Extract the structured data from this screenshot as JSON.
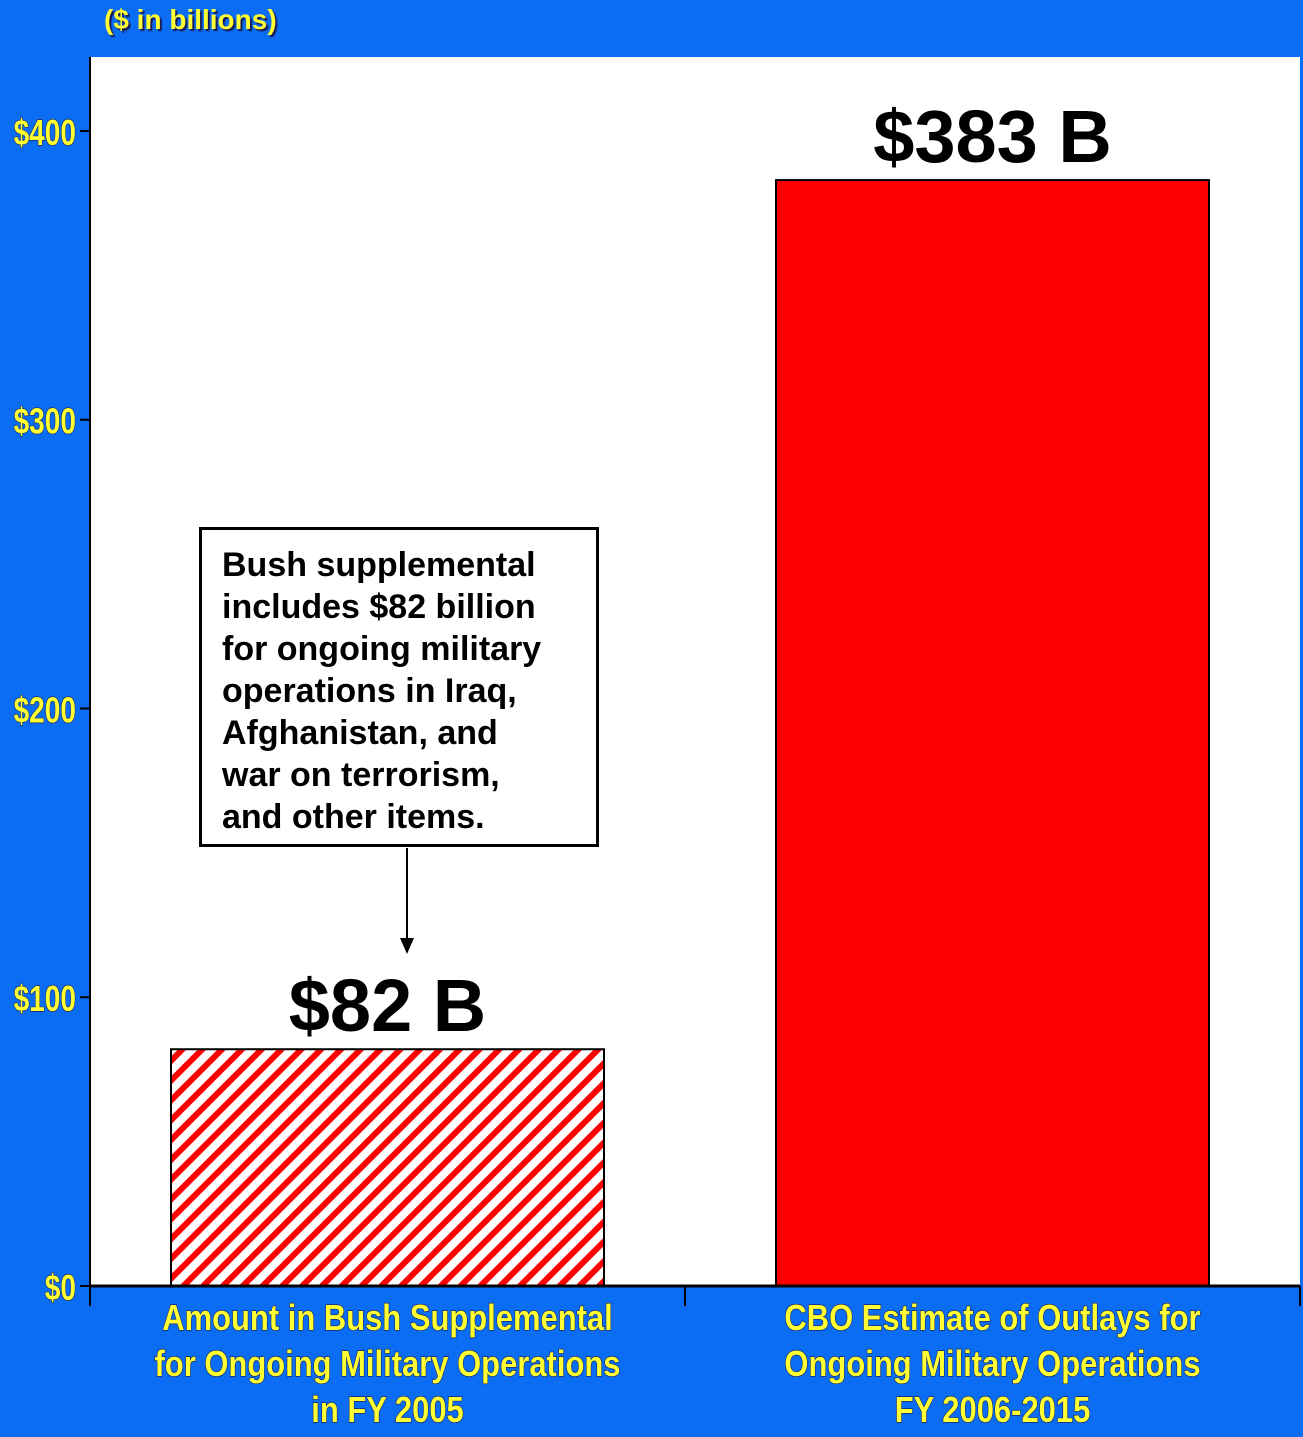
{
  "units_label": "($ in billions)",
  "colors": {
    "background": "#0a6df3",
    "plot_area": "#ffffff",
    "bar_solid": "#ff0000",
    "bar_hatch": "#ff0000",
    "axis_text": "#ffff33"
  },
  "annotation": {
    "text": "Bush supplemental\nincludes $82 billion\nfor ongoing military\noperations in Iraq,\nAfghanistan, and\nwar on terrorism,\nand other items."
  },
  "chart_data": {
    "type": "bar",
    "categories": [
      "Amount in Bush Supplemental for Ongoing Military Operations in FY 2005",
      "CBO Estimate of Outlays for Ongoing Military Operations FY 2006-2015"
    ],
    "category_lines": [
      [
        "Amount in Bush Supplemental",
        "for Ongoing Military Operations",
        "in FY 2005"
      ],
      [
        "CBO Estimate of Outlays for",
        "Ongoing Military Operations",
        "FY 2006-2015"
      ]
    ],
    "values": [
      82,
      383
    ],
    "data_labels": [
      "$82 B",
      "$383 B"
    ],
    "bar_styles": [
      "hatched",
      "solid"
    ],
    "yticks": [
      0,
      100,
      200,
      300,
      400
    ],
    "ytick_labels": [
      "$0",
      "$100",
      "$200",
      "$300",
      "$400"
    ],
    "ylim": [
      0,
      425
    ],
    "grid": false,
    "legend": false,
    "title": "",
    "xlabel": "",
    "ylabel": ""
  }
}
